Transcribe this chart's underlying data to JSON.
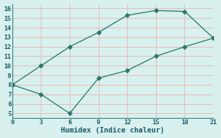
{
  "x": [
    0,
    3,
    6,
    9,
    12,
    15,
    18,
    21
  ],
  "y_upper": [
    8,
    10,
    12,
    13.5,
    15.3,
    15.8,
    15.7,
    12.9
  ],
  "y_lower": [
    8,
    7,
    5,
    8.7,
    9.5,
    11,
    12,
    12.9
  ],
  "line_color": "#2a7a6e",
  "background_color": "#d8f0ee",
  "plot_bg_color": "#d8f0ee",
  "grid_color": "#e8b8b8",
  "xlabel": "Humidex (Indice chaleur)",
  "xlim": [
    0,
    21
  ],
  "ylim": [
    4.5,
    16.5
  ],
  "xticks": [
    0,
    3,
    6,
    9,
    12,
    15,
    18,
    21
  ],
  "yticks": [
    5,
    6,
    7,
    8,
    9,
    10,
    11,
    12,
    13,
    14,
    15,
    16
  ],
  "font_color": "#1a5a6a",
  "marker_size": 3,
  "line_width": 1.0,
  "xlabel_fontsize": 7.5,
  "tick_fontsize": 6.5
}
